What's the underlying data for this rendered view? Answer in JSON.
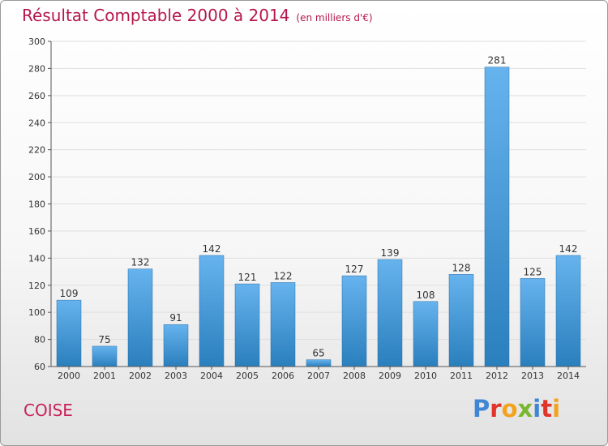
{
  "header": {
    "title": "Résultat Comptable 2000 à 2014",
    "subtitle": "(en milliers d'€)"
  },
  "footer": {
    "town": "COISE",
    "brand": "Proxiti",
    "brand_colors": [
      "#3f87d5",
      "#e0342a",
      "#f3a21c",
      "#7ab630",
      "#3f87d5",
      "#e0342a",
      "#f3a21c"
    ]
  },
  "colors": {
    "title": "#b5174a",
    "town": "#c8205a",
    "bar_top": "#66b3ee",
    "bar_bottom": "#2a7fbd",
    "grid": "#dedede",
    "axis": "#555555",
    "label": "#333333"
  },
  "chart_data": {
    "type": "bar",
    "title": "Résultat Comptable 2000 à 2014",
    "unit": "(en milliers d'€)",
    "xlabel": "",
    "ylabel": "",
    "categories": [
      "2000",
      "2001",
      "2002",
      "2003",
      "2004",
      "2005",
      "2006",
      "2007",
      "2008",
      "2009",
      "2010",
      "2011",
      "2012",
      "2013",
      "2014"
    ],
    "values": [
      109,
      75,
      132,
      91,
      142,
      121,
      122,
      65,
      127,
      139,
      108,
      128,
      281,
      125,
      142
    ],
    "ylim": [
      60,
      300
    ],
    "yticks": [
      60,
      80,
      100,
      120,
      140,
      160,
      180,
      200,
      220,
      240,
      260,
      280,
      300
    ],
    "grid": true,
    "data_labels": true
  }
}
